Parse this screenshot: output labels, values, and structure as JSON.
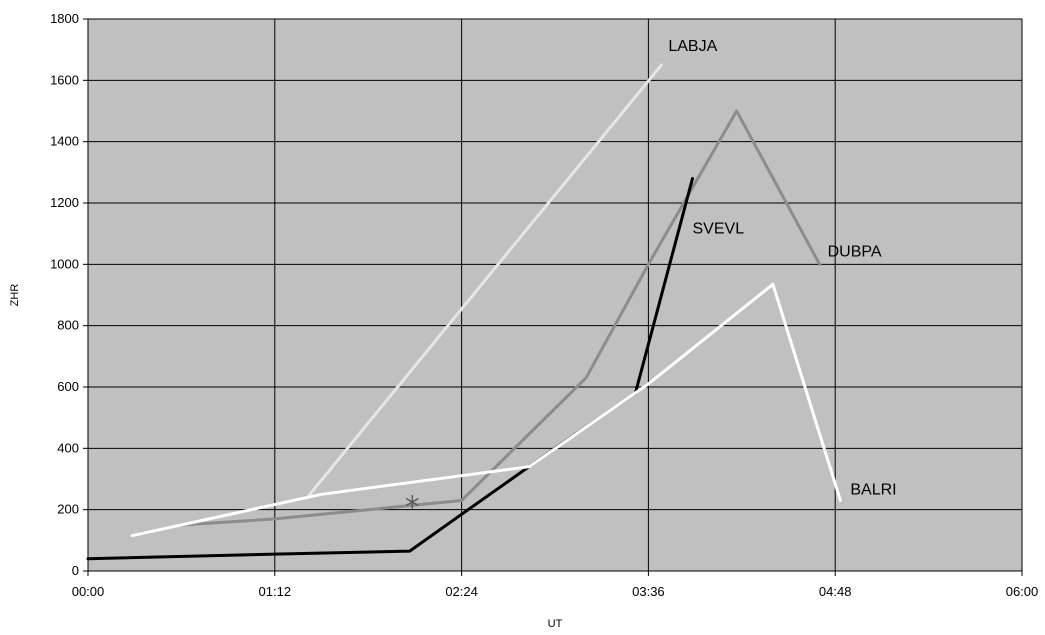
{
  "chart_data": {
    "type": "line",
    "title": "",
    "xlabel": "UT",
    "ylabel": "ZHR",
    "x_ticks": [
      "00:00",
      "01:12",
      "02:24",
      "03:36",
      "04:48",
      "06:00"
    ],
    "x_range_minutes": [
      0,
      360
    ],
    "ylim": [
      0,
      1800
    ],
    "y_ticks": [
      0,
      200,
      400,
      600,
      800,
      1000,
      1200,
      1400,
      1600,
      1800
    ],
    "grid": true,
    "legend": "none",
    "plot_background": "#c0c0c0",
    "series": [
      {
        "name": "LABJA",
        "color": "#e6e6e6",
        "x": [
          "01:25",
          "03:41"
        ],
        "y": [
          245,
          1650
        ]
      },
      {
        "name": "DUBPA",
        "color": "#8c8c8c",
        "x": [
          "00:36",
          "01:12",
          "02:24",
          "03:12",
          "03:36",
          "04:10",
          "04:42"
        ],
        "y": [
          150,
          170,
          230,
          630,
          1000,
          1500,
          1000
        ]
      },
      {
        "name": "SVEVL",
        "color": "#000000",
        "x": [
          "00:00",
          "01:12",
          "02:04",
          "02:24",
          "03:00",
          "03:31",
          "03:53"
        ],
        "y": [
          40,
          55,
          65,
          185,
          400,
          580,
          1280
        ]
      },
      {
        "name": "BALRI",
        "color": "#ffffff",
        "x": [
          "00:17",
          "01:30",
          "02:50",
          "03:36",
          "04:24",
          "04:50"
        ],
        "y": [
          115,
          250,
          340,
          610,
          935,
          230
        ]
      }
    ],
    "markers": [
      {
        "symbol": "asterisk",
        "x": "02:05",
        "y": 225,
        "color": "#555555"
      }
    ]
  }
}
